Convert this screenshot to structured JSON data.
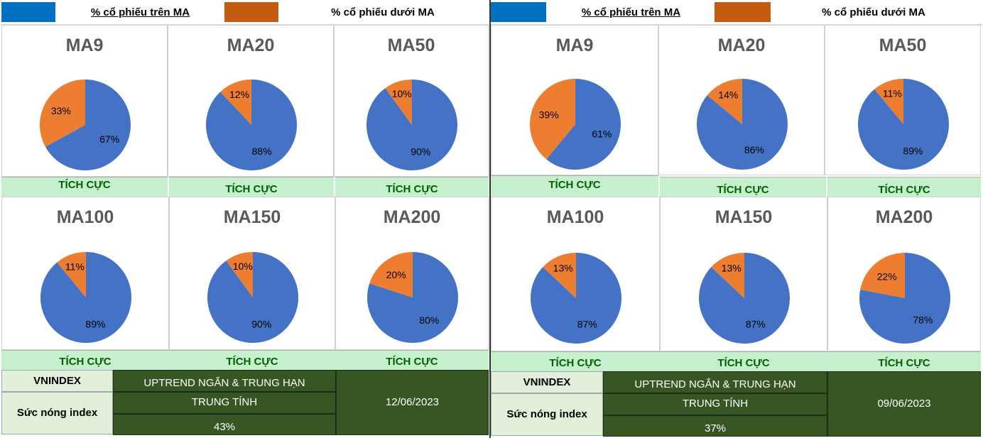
{
  "colors": {
    "above": "#4472c4",
    "below": "#ed7d31",
    "legend_blue": "#0070c0",
    "legend_orange": "#c55a11",
    "status_bg": "#c6efce",
    "status_text": "#006100",
    "table_dark": "#375623",
    "table_label_bg": "#e2efda"
  },
  "chart_data": [
    {
      "type": "pie",
      "date": "12/06/2023",
      "legend": [
        "% cổ phiếu trên MA",
        "% cổ phiếu dưới MA"
      ],
      "charts": [
        {
          "title": "MA9",
          "above": 67,
          "below": 33,
          "above_label": "67%",
          "below_label": "33%",
          "status": "TÍCH CỰC"
        },
        {
          "title": "MA20",
          "above": 88,
          "below": 12,
          "above_label": "88%",
          "below_label": "12%",
          "status": "TÍCH CỰC"
        },
        {
          "title": "MA50",
          "above": 90,
          "below": 10,
          "above_label": "90%",
          "below_label": "10%",
          "status": "TÍCH CỰC"
        },
        {
          "title": "MA100",
          "above": 89,
          "below": 11,
          "above_label": "89%",
          "below_label": "11%",
          "status": "TÍCH CỰC"
        },
        {
          "title": "MA150",
          "above": 90,
          "below": 10,
          "above_label": "90%",
          "below_label": "10%",
          "status": "TÍCH CỰC"
        },
        {
          "title": "MA200",
          "above": 80,
          "below": 20,
          "above_label": "80%",
          "below_label": "20%",
          "status": "TÍCH CỰC"
        }
      ],
      "table": {
        "vnindex_label": "VNINDEX",
        "heat_label": "Sức nóng index",
        "trend": "UPTREND NGẮN & TRUNG HẠN",
        "state": "TRUNG TÍNH",
        "heat": "43%"
      }
    },
    {
      "type": "pie",
      "date": "09/06/2023",
      "legend": [
        "% cổ phiếu trên MA",
        "% cổ phiếu dưới MA"
      ],
      "charts": [
        {
          "title": "MA9",
          "above": 61,
          "below": 39,
          "above_label": "61%",
          "below_label": "39%",
          "status": "TÍCH CỰC"
        },
        {
          "title": "MA20",
          "above": 86,
          "below": 14,
          "above_label": "86%",
          "below_label": "14%",
          "status": "TÍCH CỰC"
        },
        {
          "title": "MA50",
          "above": 89,
          "below": 11,
          "above_label": "89%",
          "below_label": "11%",
          "status": "TÍCH CỰC"
        },
        {
          "title": "MA100",
          "above": 87,
          "below": 13,
          "above_label": "87%",
          "below_label": "13%",
          "status": "TÍCH CỰC"
        },
        {
          "title": "MA150",
          "above": 87,
          "below": 13,
          "above_label": "87%",
          "below_label": "13%",
          "status": "TÍCH CỰC"
        },
        {
          "title": "MA200",
          "above": 78,
          "below": 22,
          "above_label": "78%",
          "below_label": "22%",
          "status": "TÍCH CỰC"
        }
      ],
      "table": {
        "vnindex_label": "VNINDEX",
        "heat_label": "Sức nóng index",
        "trend": "UPTREND NGẮN & TRUNG HẠN",
        "state": "TRUNG TÍNH",
        "heat": "37%"
      }
    }
  ]
}
